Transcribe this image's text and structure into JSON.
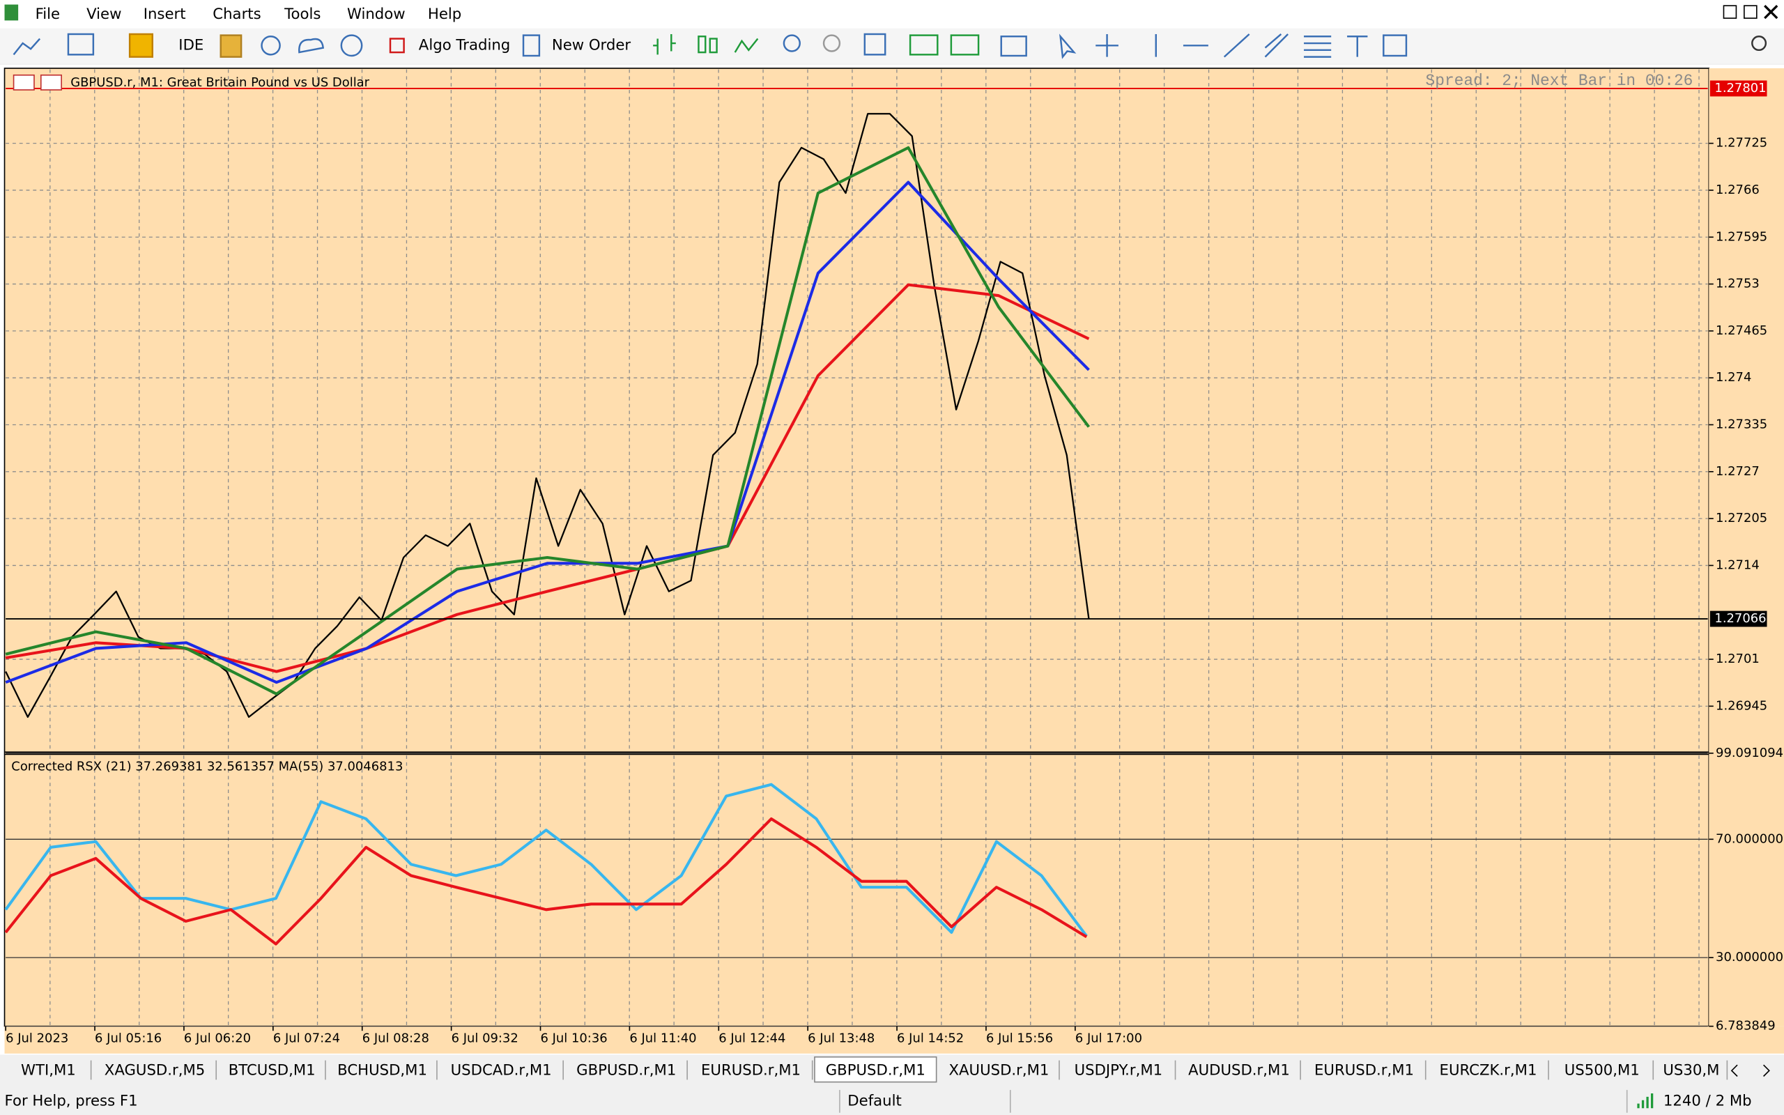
{
  "menu": [
    "File",
    "View",
    "Insert",
    "Charts",
    "Tools",
    "Window",
    "Help"
  ],
  "toolbar": {
    "ide": "IDE",
    "algo_trading": "Algo Trading",
    "new_order": "New Order"
  },
  "chart": {
    "type": "line",
    "title": "GBPUSD.r, M1:  Great Britain Pound vs US Dollar",
    "info": "Spread: 2;  Next Bar in 00:26",
    "categories": [
      "6 Jul 2023",
      "6 Jul 05:16",
      "6 Jul 06:20",
      "6 Jul 07:24",
      "6 Jul 08:28",
      "6 Jul 09:32",
      "6 Jul 10:36",
      "6 Jul 11:40",
      "6 Jul 12:44",
      "6 Jul 13:48",
      "6 Jul 14:52",
      "6 Jul 15:56",
      "6 Jul 17:00"
    ],
    "ylim": [
      1.26883,
      1.27829
    ],
    "yticks": [
      1.27725,
      1.2766,
      1.27595,
      1.2753,
      1.27465,
      1.274,
      1.27335,
      1.2727,
      1.27205,
      1.2714,
      1.2701,
      1.26945
    ],
    "ask_label": 1.27801,
    "ask_color": "#e50000",
    "bid_label": 1.27066,
    "bid_color": "#000000",
    "series": [
      {
        "color": "#000000",
        "values": [
          1.26993,
          1.2693,
          1.26985,
          1.27041,
          1.27072,
          1.27104,
          1.27041,
          1.27025,
          1.27025,
          1.27017,
          1.26993,
          1.2693,
          1.26954,
          1.26977,
          1.27025,
          1.27056,
          1.27096,
          1.27064,
          1.27151,
          1.27182,
          1.27167,
          1.27198,
          1.27104,
          1.27072,
          1.27261,
          1.27167,
          1.27245,
          1.27198,
          1.27072,
          1.27167,
          1.27104,
          1.27119,
          1.27293,
          1.27324,
          1.27419,
          1.27671,
          1.27719,
          1.27703,
          1.27656,
          1.27766,
          1.27766,
          1.27735,
          1.27529,
          1.27356,
          1.27451,
          1.27561,
          1.27545,
          1.27403,
          1.27293,
          1.27066
        ]
      },
      {
        "color": "#e8131b",
        "values": [
          1.27012,
          1.27033,
          1.27025,
          1.26993,
          1.27025,
          1.27072,
          1.27104,
          1.27135,
          1.27167,
          1.27403,
          1.27529,
          1.27514,
          1.27454
        ]
      },
      {
        "color": "#1c2be6",
        "values": [
          1.26978,
          1.27025,
          1.27033,
          1.26978,
          1.27025,
          1.27104,
          1.27143,
          1.27143,
          1.27167,
          1.27545,
          1.27671,
          1.27537,
          1.27411
        ]
      },
      {
        "color": "#25862b",
        "values": [
          1.27017,
          1.27048,
          1.27025,
          1.26962,
          1.27048,
          1.27135,
          1.27151,
          1.27135,
          1.27167,
          1.27656,
          1.27719,
          1.27498,
          1.27332
        ]
      }
    ]
  },
  "indicator": {
    "type": "line",
    "label": "Corrected RSX (21) 37.269381 32.561357 MA(55) 37.0046813",
    "ylim": [
      6.783849,
      99.091094
    ],
    "yticks": [
      99.091094,
      {
        "value": 70,
        "label": "70.000000"
      },
      {
        "value": 30,
        "label": "30.000000"
      },
      6.783849
    ],
    "series": [
      {
        "color": "#38b6ee",
        "values": [
          46.2,
          67.3,
          69.2,
          50.0,
          50.0,
          46.2,
          50.0,
          82.7,
          76.9,
          61.5,
          57.7,
          61.5,
          73.1,
          61.5,
          46.2,
          57.7,
          84.6,
          88.5,
          76.9,
          53.8,
          53.8,
          38.5,
          69.2,
          57.7,
          37.3
        ]
      },
      {
        "color": "#e8131b",
        "values": [
          38.5,
          57.7,
          63.5,
          50.0,
          42.3,
          46.2,
          34.6,
          50.0,
          67.3,
          57.7,
          53.8,
          50.0,
          46.2,
          48.1,
          48.1,
          48.1,
          61.5,
          76.9,
          67.3,
          55.8,
          55.8,
          40.4,
          53.8,
          46.2,
          37.0
        ]
      }
    ]
  },
  "tabs": [
    "WTI,M1",
    "XAGUSD.r,M5",
    "BTCUSD,M1",
    "BCHUSD,M1",
    "USDCAD.r,M1",
    "GBPUSD.r,M1",
    "EURUSD.r,M1",
    "GBPUSD.r,M1",
    "XAUUSD.r,M1",
    "USDJPY.r,M1",
    "AUDUSD.r,M1",
    "EURUSD.r,M1",
    "EURCZK.r,M1",
    "US500,M1",
    "US30,M"
  ],
  "status": {
    "help": "For Help, press F1",
    "profile": "Default",
    "memory": "1240 / 2 Mb"
  }
}
